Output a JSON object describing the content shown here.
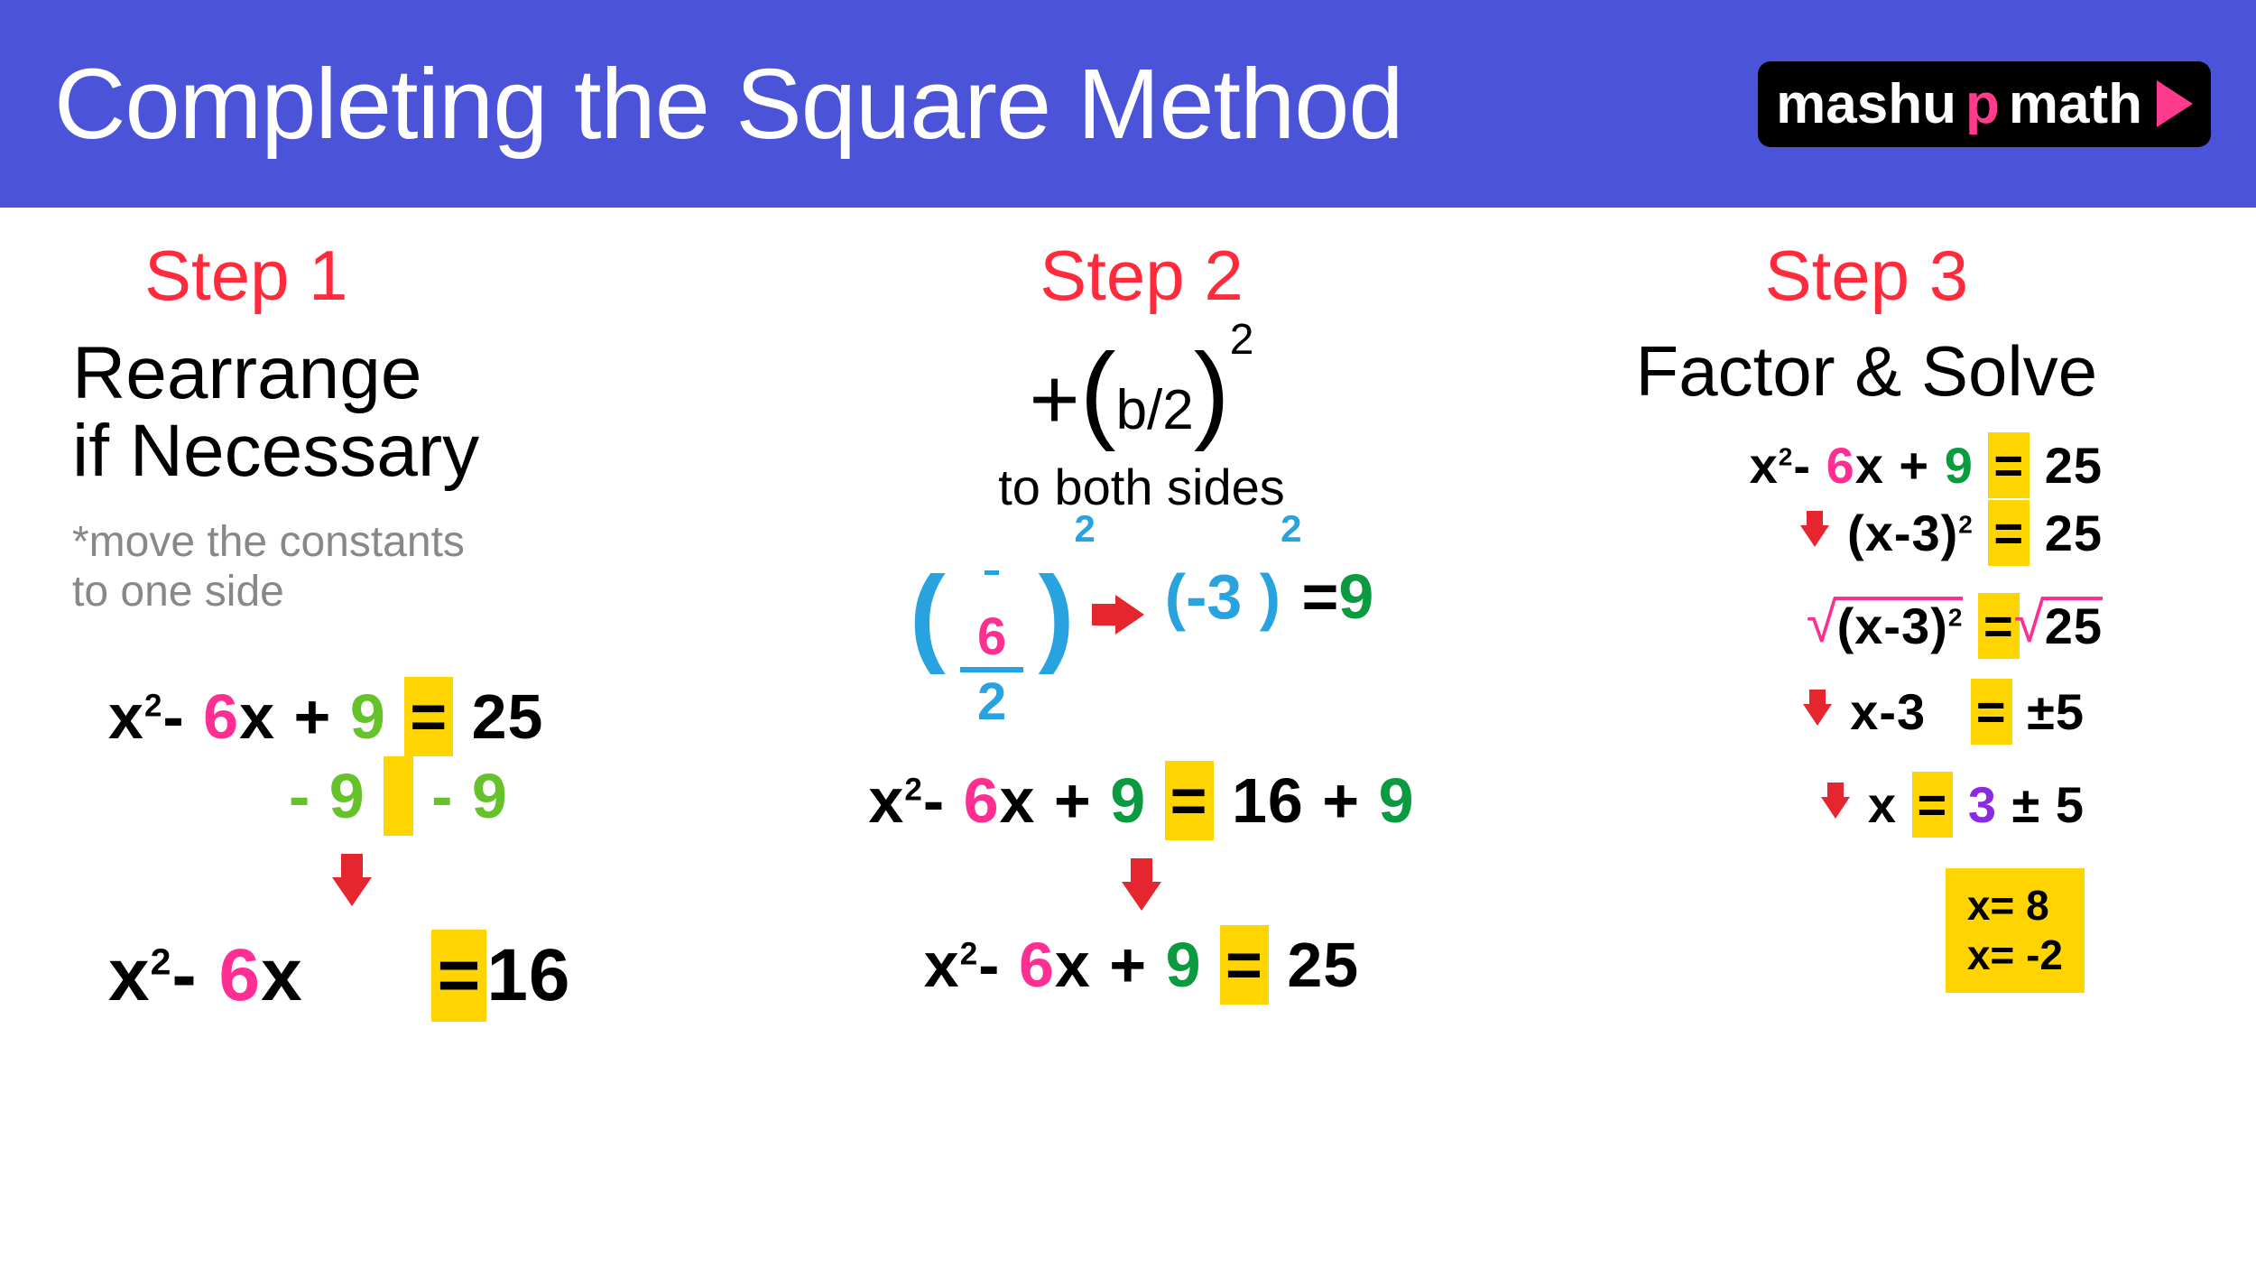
{
  "colors": {
    "header_bg": "#4b53d9",
    "header_text": "#ffffff",
    "logo_bg": "#000000",
    "logo_text": "#ffffff",
    "logo_accent": "#ff3b8d",
    "logo_play_color": "#ff3b8d",
    "step_label": "#ff2a3c",
    "subtitle_text": "#000000",
    "note_text": "#888888",
    "eq_black": "#000000",
    "eq_pink": "#ff2e92",
    "eq_green": "#66c22b",
    "eq_darkgreen": "#0a9a3f",
    "eq_blue": "#29a3e0",
    "eq_purple": "#8a2be2",
    "highlight_yellow": "#ffd400",
    "arrow_red": "#e5262f",
    "sqrt_pink": "#ff2e92",
    "answers_bg": "#ffd400"
  },
  "header": {
    "title": "Completing the Square Method",
    "logo_prefix": "mashu",
    "logo_accent": "p",
    "logo_suffix": "math"
  },
  "step1": {
    "label": "Step 1",
    "subtitle_line1": "Rearrange",
    "subtitle_line2": "if Necessary",
    "note_line1": "*move the constants",
    "note_line2": " to one side",
    "eq1": {
      "x2": "x",
      "sup": "2",
      "minus": "- ",
      "six": "6",
      "x": "x",
      "plus": " + ",
      "nine": "9",
      "eq": "=",
      "rhs": "25"
    },
    "eq2": {
      "minus": "- ",
      "nine1": "9",
      "nine2": "- 9"
    },
    "eq3": {
      "x2": "x",
      "sup": "2",
      "minus": "- ",
      "six": "6",
      "x": "x",
      "eq": "=",
      "rhs": "16"
    }
  },
  "step2": {
    "label": "Step 2",
    "formula_plus": "+",
    "formula_lp": "(",
    "formula_body": "b/2",
    "formula_rp": ")",
    "formula_sup": "2",
    "subtitle": "to both sides",
    "frac_top": "6",
    "frac_bar_top": "—",
    "frac_bot": "2",
    "paren_sup1": "2",
    "neg3": "(-3 )",
    "paren_sup2": "2",
    "eqsym": "=",
    "nine": "9",
    "eq1": {
      "x2": "x",
      "sup": "2",
      "minus": "- ",
      "six": "6",
      "x": "x",
      "plus": " + ",
      "nine": "9",
      "eq": "=",
      "sixteen": "16",
      "plus2": " + ",
      "nine2": "9"
    },
    "eq2": {
      "x2": "x",
      "sup": "2",
      "minus": "- ",
      "six": "6",
      "x": "x",
      "plus": " + ",
      "nine": "9",
      "eq": "=",
      "rhs": "25"
    }
  },
  "step3": {
    "label": "Step 3",
    "subtitle": "Factor & Solve",
    "r1": {
      "x2": "x",
      "sup": "2",
      "minus": "- ",
      "six": "6",
      "x": "x",
      "plus": " + ",
      "nine": "9",
      "eq": "=",
      "rhs": "25"
    },
    "r2": {
      "body": "(x-3)",
      "sup": "2",
      "eq": "=",
      "rhs": "25"
    },
    "r3": {
      "lhs": "(x-3)",
      "lhs_sup": "2",
      "eq": "=",
      "rhs": "25"
    },
    "r4": {
      "lhs": "x-3",
      "eq": "=",
      "pm": "±",
      "rhs": "5"
    },
    "r5": {
      "lhs": "x",
      "eq": "=",
      "three": "3",
      "pm": "±",
      "rhs": "5"
    },
    "ans1": "x= 8",
    "ans2": "x= -2"
  }
}
